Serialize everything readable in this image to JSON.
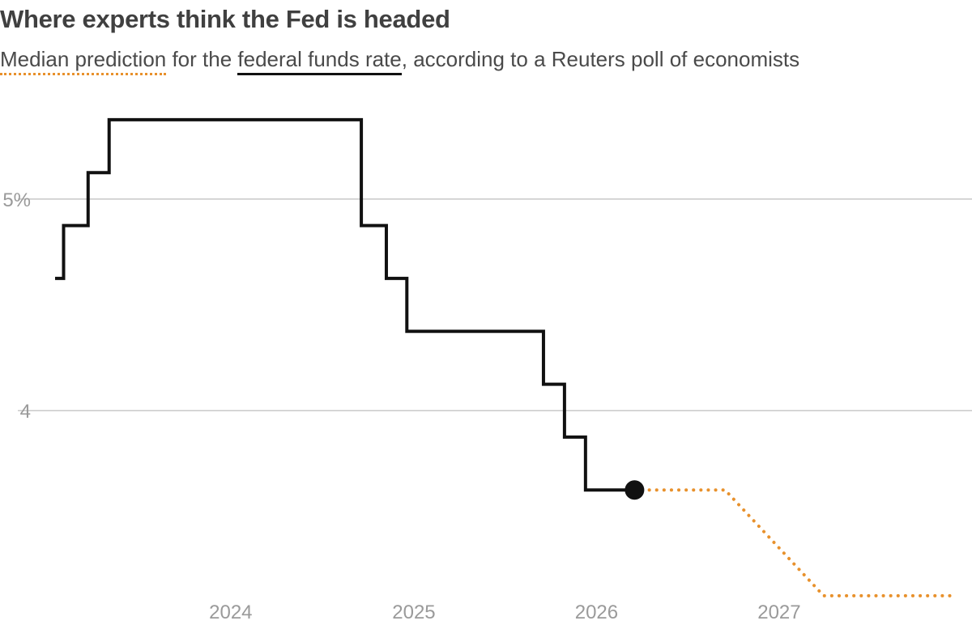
{
  "title": "Where experts think the Fed is headed",
  "subtitle": {
    "forecast_key": "Median prediction",
    "text_a": " for the ",
    "actual_key": "federal funds rate",
    "text_b": ", according to a Reuters poll of economists"
  },
  "colors": {
    "actual": "#111111",
    "forecast": "#e8912c",
    "grid": "#c8c8c8",
    "tick": "#9a9a9a"
  },
  "chart_data": {
    "type": "line",
    "title": "Where experts think the Fed is headed",
    "xlabel": "",
    "ylabel": "",
    "xlim": [
      "2023-01-15",
      "2027-12-20"
    ],
    "ylim": [
      3.14,
      5.52
    ],
    "grid": true,
    "y_ticks": [
      {
        "value": 5,
        "label": "5%"
      },
      {
        "value": 4,
        "label": "4"
      }
    ],
    "x_ticks": [
      {
        "value": "2024-01-01",
        "label": "2024"
      },
      {
        "value": "2025-01-01",
        "label": "2025"
      },
      {
        "value": "2026-01-01",
        "label": "2026"
      },
      {
        "value": "2027-01-01",
        "label": "2027"
      }
    ],
    "series": [
      {
        "name": "federal funds rate",
        "style": "step",
        "color": "#111111",
        "points": [
          {
            "date": "2023-01-15",
            "rate": 4.625
          },
          {
            "date": "2023-02-01",
            "rate": 4.875
          },
          {
            "date": "2023-03-22",
            "rate": 5.125
          },
          {
            "date": "2023-05-03",
            "rate": 5.375
          },
          {
            "date": "2023-07-26",
            "rate": 5.375
          },
          {
            "date": "2024-09-18",
            "rate": 4.875
          },
          {
            "date": "2024-11-07",
            "rate": 4.625
          },
          {
            "date": "2024-12-18",
            "rate": 4.375
          },
          {
            "date": "2025-09-17",
            "rate": 4.125
          },
          {
            "date": "2025-10-29",
            "rate": 3.875
          },
          {
            "date": "2025-12-10",
            "rate": 3.625
          },
          {
            "date": "2026-03-18",
            "rate": 3.625
          }
        ]
      },
      {
        "name": "Median prediction",
        "style": "dotted",
        "color": "#e8912c",
        "points": [
          {
            "date": "2026-03-18",
            "rate": 3.625
          },
          {
            "date": "2026-09-15",
            "rate": 3.625
          },
          {
            "date": "2027-03-31",
            "rate": 3.125
          },
          {
            "date": "2027-12-20",
            "rate": 3.125
          }
        ]
      }
    ],
    "end_marker": {
      "date": "2026-03-18",
      "rate": 3.625
    }
  }
}
